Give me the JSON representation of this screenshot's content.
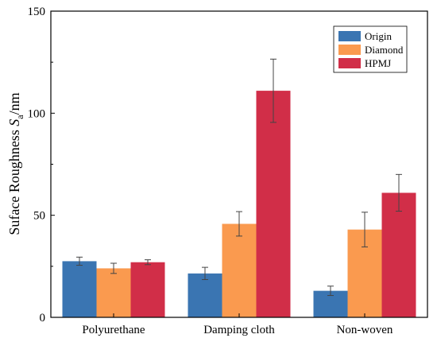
{
  "chart_data": {
    "type": "bar",
    "xlabel": "",
    "ylabel_parts": {
      "text": "Suface Roughness ",
      "symbol": "S",
      "subscript": "a",
      "unit": "/nm"
    },
    "ylim": [
      0,
      150
    ],
    "yticks": [
      "0",
      "50",
      "100",
      "150"
    ],
    "categories": [
      "Polyurethane",
      "Damping cloth",
      "Non-woven"
    ],
    "series": [
      {
        "name": "Origin",
        "color": "#3a75b2",
        "values": [
          27.5,
          21.5,
          13.0
        ],
        "errors": [
          2.0,
          3.0,
          2.3
        ]
      },
      {
        "name": "Diamond",
        "color": "#fa9a4f",
        "values": [
          24.0,
          45.8,
          43.0
        ],
        "errors": [
          2.5,
          6.0,
          8.5
        ]
      },
      {
        "name": "HPMJ",
        "color": "#d12e48",
        "values": [
          27.0,
          111.0,
          61.0
        ],
        "errors": [
          1.2,
          15.5,
          9.0
        ]
      }
    ],
    "legend_position": "top-right",
    "grid": false
  }
}
